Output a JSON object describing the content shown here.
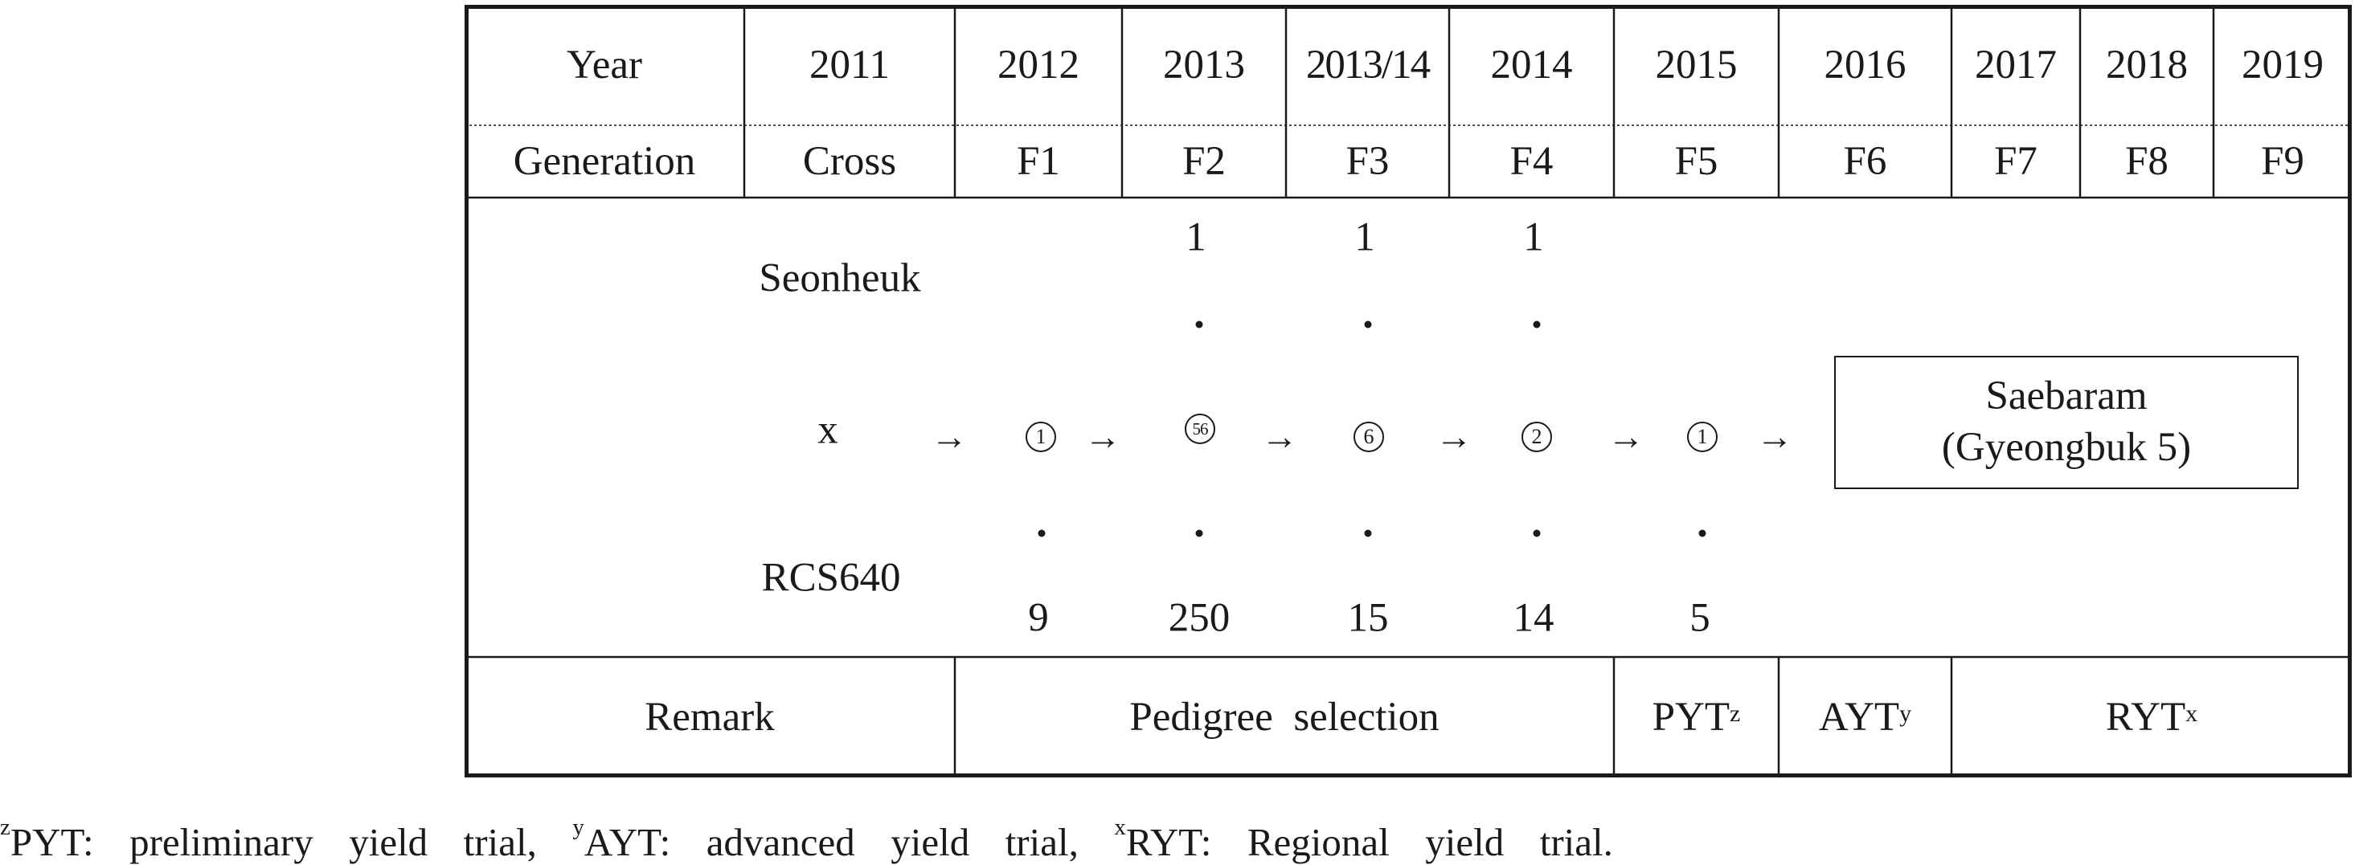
{
  "header": {
    "year_label": "Year",
    "generation_label": "Generation",
    "years": [
      "2011",
      "2012",
      "2013",
      "2013/14",
      "2014",
      "2015",
      "2016",
      "2017",
      "2018",
      "2019"
    ],
    "generations": [
      "Cross",
      "F1",
      "F2",
      "F3",
      "F4",
      "F5",
      "F6",
      "F7",
      "F8",
      "F9"
    ]
  },
  "cross": {
    "parent_female": "Seonheuk",
    "cross_symbol": "x",
    "parent_male": "RCS640"
  },
  "selection": {
    "top_values": [
      "1",
      "1",
      "1"
    ],
    "circled_values": [
      "1",
      "56",
      "6",
      "2",
      "1"
    ],
    "bottom_values": [
      "9",
      "250",
      "15",
      "14",
      "5"
    ],
    "arrow_symbol": "→"
  },
  "result": {
    "line1": "Saebaram",
    "line2": "(Gyeongbuk 5)"
  },
  "remarks": {
    "label": "Remark",
    "pedigree": "Pedigree  selection",
    "pyt": "PYT",
    "pyt_sup": "z",
    "ayt": "AYT",
    "ayt_sup": "y",
    "ryt": "RYT",
    "ryt_sup": "x"
  },
  "footnote": {
    "z": "z",
    "pyt_text": "PYT:  preliminary  yield  trial,  ",
    "y": "y",
    "ayt_text": "AYT:  advanced  yield  trial,  ",
    "x": "x",
    "ryt_text": "RYT:  Regional  yield  trial."
  }
}
